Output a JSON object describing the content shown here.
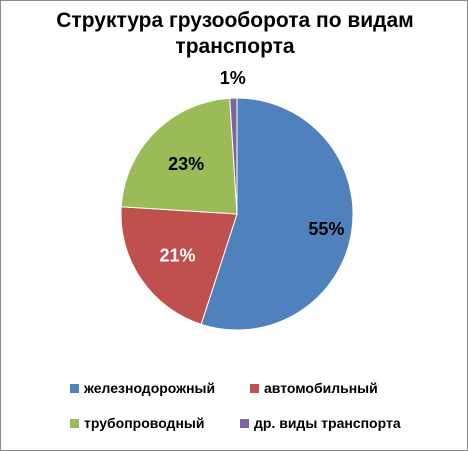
{
  "chart_data": {
    "type": "pie",
    "title": "Структура грузооборота по видам транспорта",
    "title_lines": [
      "Структура грузооборота по видам",
      "транспорта"
    ],
    "categories": [
      "железнодорожный",
      "автомобильный",
      "трубопроводный",
      "др. виды транспорта"
    ],
    "values": [
      55,
      21,
      23,
      1
    ],
    "data_labels": [
      "55%",
      "21%",
      "23%",
      "1%"
    ],
    "colors": [
      "#4f81bd",
      "#c0504d",
      "#9bbb59",
      "#8064a2"
    ],
    "label_colors": [
      "#000000",
      "#ffffff",
      "#000000",
      "#000000"
    ],
    "legend_position": "bottom"
  }
}
